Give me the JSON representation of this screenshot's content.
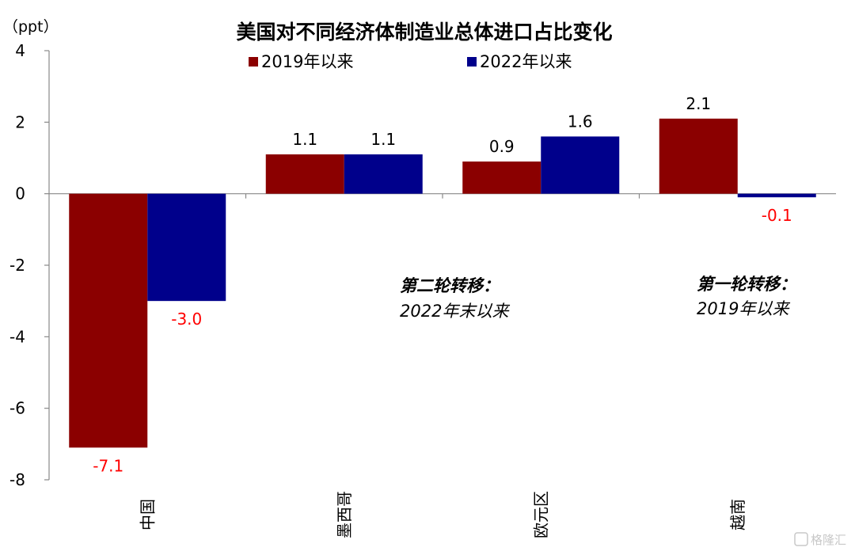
{
  "chart_data": {
    "type": "bar",
    "title": "美国对不同经济体制造业总体进口占比变化",
    "unit": "（ppt）",
    "categories": [
      "中国",
      "墨西哥",
      "欧元区",
      "越南"
    ],
    "series": [
      {
        "name": "2019年以来",
        "values": [
          -7.1,
          1.1,
          0.9,
          2.1
        ],
        "labels": [
          "-7.1",
          "1.1",
          "0.9",
          "2.1"
        ]
      },
      {
        "name": "2022年以来",
        "values": [
          -3.0,
          1.1,
          1.6,
          -0.1
        ],
        "labels": [
          "-3.0",
          "1.1",
          "1.6",
          "-0.1"
        ]
      }
    ],
    "ylim": [
      -8,
      4
    ],
    "yticks": [
      4,
      2,
      0,
      -2,
      -4,
      -6,
      -8
    ],
    "ytick_labels": [
      "4",
      "2",
      "0",
      "-2",
      "-4",
      "-6",
      "-8"
    ],
    "legend_position": "top",
    "grid": false,
    "annotations": [
      {
        "line1": "第二轮转移：",
        "line2": "2022年末以来"
      },
      {
        "line1": "第一轮转移：",
        "line2": "2019年以来"
      }
    ]
  },
  "colors": {
    "series1": "#8B0000",
    "series2": "#00008B",
    "positive_label": "#000000",
    "negative_label": "#FF0000",
    "axis": "#888888"
  },
  "watermark": "格隆汇"
}
